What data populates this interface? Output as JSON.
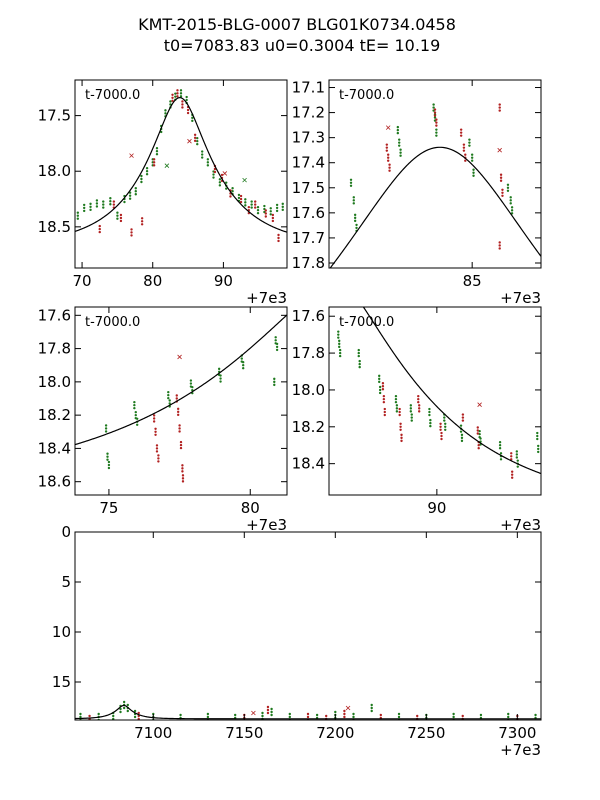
{
  "figure": {
    "title_line1": "KMT-2015-BLG-0007 BLG01K0734.0458",
    "title_line2": "t0=7083.83 u0=0.3004 tE=  10.19"
  },
  "model": {
    "t0": 7083.83,
    "u0": 0.3004,
    "tE": 10.19,
    "base_mag": 18.68
  },
  "colors": {
    "red_series": "#b22222",
    "green_series": "#1f7a1f",
    "model_line": "#000000",
    "axes": "#000000"
  },
  "chart_data": [
    {
      "type": "scatter",
      "panel": "top-left",
      "inner_label": "t-7000.0",
      "x_offset_label": "+7e3",
      "xlim": [
        69,
        99
      ],
      "ylim": [
        18.87,
        17.18
      ],
      "y_inverted": true,
      "xticks": [
        70,
        80,
        90
      ],
      "yticks": [
        17.5,
        18.0,
        18.5
      ],
      "ytick_labels": [
        "17.5",
        "18.0",
        "18.5"
      ],
      "series": [
        {
          "color": "green",
          "points": [
            [
              69.4,
              18.4
            ],
            [
              70.3,
              18.33
            ],
            [
              71.2,
              18.32
            ],
            [
              72.1,
              18.29
            ],
            [
              73.0,
              18.3
            ],
            [
              74.0,
              18.27
            ],
            [
              75.0,
              18.4
            ],
            [
              76.0,
              18.25
            ],
            [
              76.8,
              18.22
            ],
            [
              77.6,
              18.18
            ],
            [
              78.4,
              18.07
            ],
            [
              79.2,
              18.0
            ],
            [
              80.0,
              17.92
            ],
            [
              80.6,
              17.82
            ],
            [
              81.2,
              17.62
            ],
            [
              81.8,
              17.48
            ],
            [
              82.5,
              17.4
            ],
            [
              83.2,
              17.33
            ],
            [
              84.0,
              17.3
            ],
            [
              84.8,
              17.36
            ],
            [
              85.6,
              17.52
            ],
            [
              86.3,
              17.73
            ],
            [
              87.0,
              17.85
            ],
            [
              87.8,
              17.92
            ],
            [
              88.6,
              18.03
            ],
            [
              89.5,
              18.1
            ],
            [
              90.4,
              18.13
            ],
            [
              91.3,
              18.18
            ],
            [
              92.2,
              18.24
            ],
            [
              93.1,
              18.28
            ],
            [
              94.0,
              18.3
            ],
            [
              94.9,
              18.35
            ],
            [
              95.8,
              18.34
            ],
            [
              96.7,
              18.36
            ],
            [
              97.6,
              18.33
            ],
            [
              98.4,
              18.32
            ]
          ]
        },
        {
          "color": "red",
          "points": [
            [
              72.5,
              18.52
            ],
            [
              74.5,
              18.3
            ],
            [
              75.5,
              18.42
            ],
            [
              77.0,
              18.55
            ],
            [
              78.5,
              18.45
            ],
            [
              80.2,
              17.92
            ],
            [
              82.8,
              17.34
            ],
            [
              83.5,
              17.3
            ],
            [
              84.2,
              17.4
            ],
            [
              85.0,
              17.45
            ],
            [
              86.0,
              17.7
            ],
            [
              88.8,
              17.98
            ],
            [
              89.8,
              18.06
            ],
            [
              91.0,
              18.2
            ],
            [
              92.5,
              18.25
            ],
            [
              93.6,
              18.35
            ],
            [
              94.5,
              18.3
            ],
            [
              96.0,
              18.38
            ],
            [
              97.0,
              18.42
            ],
            [
              97.8,
              18.6
            ]
          ]
        },
        {
          "color": "red",
          "marker": "x",
          "points": [
            [
              77.0,
              17.86
            ],
            [
              90.2,
              18.02
            ],
            [
              85.2,
              17.73
            ]
          ]
        },
        {
          "color": "green",
          "marker": "x",
          "points": [
            [
              82.0,
              17.95
            ],
            [
              93.0,
              18.08
            ]
          ]
        }
      ]
    },
    {
      "type": "scatter",
      "panel": "top-right",
      "inner_label": "t-7000.0",
      "x_offset_label": "+7e3",
      "xlim": [
        79.8,
        87.5
      ],
      "ylim": [
        17.82,
        17.07
      ],
      "y_inverted": true,
      "xticks": [
        85
      ],
      "yticks": [
        17.1,
        17.2,
        17.3,
        17.4,
        17.5,
        17.6,
        17.7,
        17.8
      ],
      "ytick_labels": [
        "17.1",
        "17.2",
        "17.3",
        "17.4",
        "17.5",
        "17.6",
        "17.7",
        "17.8"
      ],
      "series": [
        {
          "color": "green",
          "points": [
            [
              80.6,
              17.48
            ],
            [
              80.7,
              17.55
            ],
            [
              80.75,
              17.62
            ],
            [
              80.8,
              17.66
            ],
            [
              82.3,
              17.27
            ],
            [
              82.35,
              17.32
            ],
            [
              82.4,
              17.36
            ],
            [
              83.6,
              17.18
            ],
            [
              83.65,
              17.22
            ],
            [
              83.7,
              17.28
            ],
            [
              84.9,
              17.32
            ],
            [
              85.0,
              17.38
            ],
            [
              85.05,
              17.44
            ],
            [
              86.3,
              17.5
            ],
            [
              86.4,
              17.55
            ],
            [
              86.45,
              17.59
            ]
          ]
        },
        {
          "color": "red",
          "points": [
            [
              81.9,
              17.34
            ],
            [
              81.95,
              17.38
            ],
            [
              82.0,
              17.42
            ],
            [
              83.65,
              17.2
            ],
            [
              83.7,
              17.24
            ],
            [
              84.6,
              17.28
            ],
            [
              84.7,
              17.34
            ],
            [
              84.75,
              17.38
            ],
            [
              86.0,
              17.18
            ],
            [
              86.05,
              17.46
            ],
            [
              86.1,
              17.52
            ],
            [
              86.0,
              17.73
            ]
          ]
        },
        {
          "color": "red",
          "marker": "x",
          "points": [
            [
              81.95,
              17.26
            ],
            [
              86.0,
              17.35
            ]
          ]
        }
      ]
    },
    {
      "type": "scatter",
      "panel": "middle-left",
      "inner_label": "t-7000.0",
      "x_offset_label": "+7e3",
      "xlim": [
        73.8,
        81.3
      ],
      "ylim": [
        18.68,
        17.55
      ],
      "y_inverted": true,
      "xticks": [
        75,
        80
      ],
      "yticks": [
        17.6,
        17.8,
        18.0,
        18.2,
        18.4,
        18.6
      ],
      "ytick_labels": [
        "17.6",
        "17.8",
        "18.0",
        "18.2",
        "18.4",
        "18.6"
      ],
      "series": [
        {
          "color": "green",
          "points": [
            [
              74.9,
              18.28
            ],
            [
              74.95,
              18.45
            ],
            [
              75.0,
              18.5
            ],
            [
              75.9,
              18.14
            ],
            [
              75.95,
              18.2
            ],
            [
              76.0,
              18.24
            ],
            [
              77.1,
              18.08
            ],
            [
              77.15,
              18.13
            ],
            [
              77.9,
              18.01
            ],
            [
              77.95,
              18.05
            ],
            [
              78.9,
              17.94
            ],
            [
              78.95,
              17.98
            ],
            [
              79.7,
              17.86
            ],
            [
              79.75,
              17.9
            ],
            [
              80.9,
              17.75
            ],
            [
              80.95,
              17.79
            ],
            [
              80.85,
              18.0
            ]
          ]
        },
        {
          "color": "red",
          "points": [
            [
              76.6,
              18.22
            ],
            [
              76.65,
              18.3
            ],
            [
              76.7,
              18.4
            ],
            [
              76.75,
              18.46
            ],
            [
              77.4,
              18.1
            ],
            [
              77.45,
              18.18
            ],
            [
              77.5,
              18.28
            ],
            [
              77.55,
              18.38
            ],
            [
              77.6,
              18.52
            ],
            [
              77.62,
              18.58
            ]
          ]
        },
        {
          "color": "red",
          "marker": "x",
          "points": [
            [
              77.5,
              17.85
            ]
          ]
        }
      ]
    },
    {
      "type": "scatter",
      "panel": "middle-right",
      "inner_label": "t-7000.0",
      "x_offset_label": "+7e3",
      "xlim": [
        84.2,
        95.6
      ],
      "ylim": [
        18.57,
        17.55
      ],
      "y_inverted": true,
      "xticks": [
        90
      ],
      "yticks": [
        17.6,
        17.8,
        18.0,
        18.2,
        18.4
      ],
      "ytick_labels": [
        "17.6",
        "17.8",
        "18.0",
        "18.2",
        "18.4"
      ],
      "series": [
        {
          "color": "green",
          "points": [
            [
              84.7,
              17.7
            ],
            [
              84.75,
              17.75
            ],
            [
              84.8,
              17.8
            ],
            [
              85.8,
              17.8
            ],
            [
              85.85,
              17.86
            ],
            [
              86.9,
              17.94
            ],
            [
              86.95,
              18.0
            ],
            [
              87.8,
              18.05
            ],
            [
              87.85,
              18.1
            ],
            [
              88.6,
              18.1
            ],
            [
              88.65,
              18.15
            ],
            [
              89.6,
              18.12
            ],
            [
              89.65,
              18.18
            ],
            [
              90.4,
              18.15
            ],
            [
              90.45,
              18.2
            ],
            [
              91.3,
              18.21
            ],
            [
              91.35,
              18.26
            ],
            [
              92.3,
              18.24
            ],
            [
              92.35,
              18.28
            ],
            [
              93.4,
              18.3
            ],
            [
              93.45,
              18.36
            ],
            [
              94.3,
              18.35
            ],
            [
              94.35,
              18.4
            ],
            [
              95.4,
              18.25
            ],
            [
              95.45,
              18.32
            ]
          ]
        },
        {
          "color": "red",
          "points": [
            [
              87.1,
              17.98
            ],
            [
              87.15,
              18.05
            ],
            [
              87.2,
              18.12
            ],
            [
              88.0,
              18.12
            ],
            [
              88.05,
              18.2
            ],
            [
              88.1,
              18.26
            ],
            [
              89.0,
              18.05
            ],
            [
              89.05,
              18.1
            ],
            [
              90.2,
              18.2
            ],
            [
              90.25,
              18.25
            ],
            [
              91.4,
              18.15
            ],
            [
              92.2,
              18.22
            ],
            [
              92.25,
              18.3
            ],
            [
              94.0,
              18.36
            ],
            [
              94.05,
              18.46
            ]
          ]
        },
        {
          "color": "red",
          "marker": "x",
          "points": [
            [
              92.3,
              18.08
            ]
          ]
        }
      ]
    },
    {
      "type": "scatter",
      "panel": "bottom",
      "x_offset_label": "+7e3",
      "xlim": [
        7057,
        7313
      ],
      "ylim": [
        0,
        18.8
      ],
      "y_inverted": true,
      "xticks": [
        7100,
        7150,
        7200,
        7250,
        7300
      ],
      "yticks": [
        0,
        5,
        10,
        15
      ],
      "ytick_labels": [
        "0",
        "5",
        "10",
        "15"
      ],
      "series": [
        {
          "color": "green",
          "points": [
            [
              7060,
              18.5
            ],
            [
              7070,
              18.5
            ],
            [
              7078,
              18.4
            ],
            [
              7082,
              17.7
            ],
            [
              7084,
              17.3
            ],
            [
              7086,
              17.6
            ],
            [
              7090,
              18.2
            ],
            [
              7100,
              18.5
            ],
            [
              7115,
              18.6
            ],
            [
              7130,
              18.5
            ],
            [
              7145,
              18.6
            ],
            [
              7160,
              18.4
            ],
            [
              7165,
              18.0
            ],
            [
              7175,
              18.5
            ],
            [
              7190,
              18.6
            ],
            [
              7200,
              18.3
            ],
            [
              7210,
              18.5
            ],
            [
              7220,
              17.6
            ],
            [
              7235,
              18.5
            ],
            [
              7250,
              18.6
            ],
            [
              7265,
              18.5
            ],
            [
              7280,
              18.6
            ],
            [
              7295,
              18.5
            ],
            [
              7310,
              18.6
            ]
          ]
        },
        {
          "color": "red",
          "points": [
            [
              7065,
              18.7
            ],
            [
              7092,
              18.4
            ],
            [
              7150,
              18.6
            ],
            [
              7163,
              17.8
            ],
            [
              7185,
              18.5
            ],
            [
              7195,
              18.7
            ],
            [
              7205,
              18.2
            ],
            [
              7225,
              18.6
            ],
            [
              7245,
              18.7
            ],
            [
              7270,
              18.7
            ],
            [
              7300,
              18.7
            ]
          ]
        },
        {
          "color": "red",
          "marker": "x",
          "points": [
            [
              7155,
              18.1
            ],
            [
              7207,
              17.6
            ]
          ]
        }
      ]
    }
  ]
}
